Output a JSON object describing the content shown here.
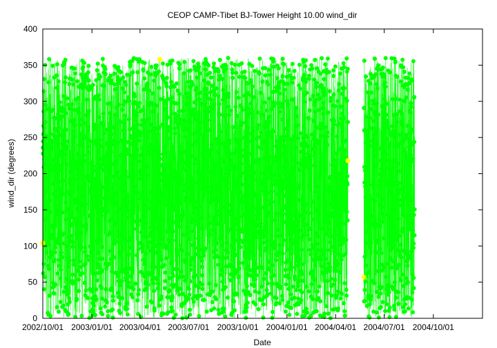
{
  "chart_data": {
    "type": "scatter",
    "title": "CEOP CAMP-Tibet BJ-Tower Height 10.00 wind_dir",
    "xlabel": "Date",
    "ylabel": "wind_dir (degrees)",
    "ylim": [
      0,
      400
    ],
    "xlim": [
      "2002-10-01",
      "2005-01-01"
    ],
    "yticks": [
      0,
      50,
      100,
      150,
      200,
      250,
      300,
      350,
      400
    ],
    "xticks": [
      {
        "date": "2002-10-01",
        "label": "2002/10/01"
      },
      {
        "date": "2003-01-01",
        "label": "2003/01/01"
      },
      {
        "date": "2003-04-01",
        "label": "2003/04/01"
      },
      {
        "date": "2003-07-01",
        "label": "2003/07/01"
      },
      {
        "date": "2003-10-01",
        "label": "2003/10/01"
      },
      {
        "date": "2004-01-01",
        "label": "2004/01/01"
      },
      {
        "date": "2004-04-01",
        "label": "2004/04/01"
      },
      {
        "date": "2004-07-01",
        "label": "2004/07/01"
      },
      {
        "date": "2004-10-01",
        "label": "2004/10/01"
      }
    ],
    "grid": false,
    "series": [
      {
        "color": "#00ff00",
        "style": "points-and-lines",
        "segments": [
          {
            "start": "2002-10-01",
            "end": "2004-04-24",
            "min": 0,
            "max": 360
          },
          {
            "start": "2004-05-24",
            "end": "2004-08-27",
            "min": 0,
            "max": 360
          }
        ]
      },
      {
        "color": "#ffff00",
        "style": "points",
        "points": [
          {
            "x": "2002-10-01",
            "y": 104
          },
          {
            "x": "2003-05-08",
            "y": 358
          },
          {
            "x": "2004-04-24",
            "y": 218
          },
          {
            "x": "2004-05-24",
            "y": 57
          }
        ]
      }
    ]
  }
}
